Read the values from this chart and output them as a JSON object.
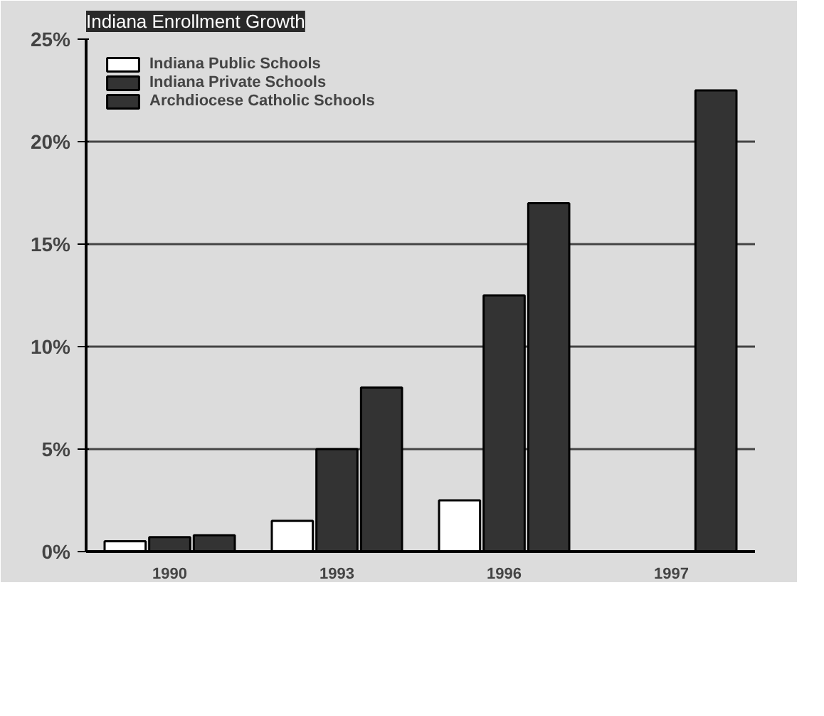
{
  "chart_data": {
    "type": "bar",
    "title": "Indiana Enrollment Growth",
    "categories": [
      "1990",
      "1993",
      "1996",
      "1997"
    ],
    "series": [
      {
        "name": "Indiana Public Schools",
        "color": "#ffffff",
        "values": [
          0.5,
          1.5,
          2.5,
          null
        ]
      },
      {
        "name": "Indiana Private Schools",
        "color": "#333333",
        "values": [
          0.7,
          5.0,
          12.5,
          null
        ]
      },
      {
        "name": "Archdiocese Catholic Schools",
        "color": "#333333",
        "values": [
          0.8,
          8.0,
          17.0,
          22.5
        ]
      }
    ],
    "ylim": [
      0,
      25
    ],
    "yticks": [
      {
        "value": 0,
        "label": "0%"
      },
      {
        "value": 5,
        "label": "5%"
      },
      {
        "value": 10,
        "label": "10%"
      },
      {
        "value": 15,
        "label": "15%"
      },
      {
        "value": 20,
        "label": "20%"
      },
      {
        "value": 25,
        "label": "25%"
      }
    ],
    "grid": "y",
    "legend": "top left"
  }
}
